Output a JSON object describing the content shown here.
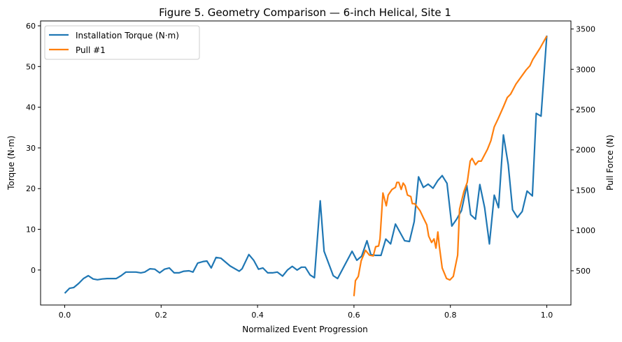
{
  "chart_data": {
    "type": "line",
    "title": "Figure 5. Geometry Comparison — 6-inch Helical, Site 1",
    "xlabel": "Normalized Event Progression",
    "ylabel_left": "Torque (N·m)",
    "ylabel_right": "Pull Force (N)",
    "xlim": [
      -0.05,
      1.05
    ],
    "ylim_left": [
      -8.6,
      61.2
    ],
    "ylim_right": [
      75,
      3600
    ],
    "xticks": [
      "0.0",
      "0.2",
      "0.4",
      "0.6",
      "0.8",
      "1.0"
    ],
    "yticks_left": [
      "0",
      "10",
      "20",
      "30",
      "40",
      "50",
      "60"
    ],
    "yticks_right": [
      "500",
      "1000",
      "1500",
      "2000",
      "2500",
      "3000",
      "3500"
    ],
    "grid": false,
    "legend_position": "upper-left",
    "series": [
      {
        "name": "Installation Torque (N·m)",
        "axis": "left",
        "color": "#1f77b4",
        "x": [
          0,
          0.01,
          0.019,
          0.029,
          0.039,
          0.049,
          0.059,
          0.068,
          0.078,
          0.088,
          0.107,
          0.117,
          0.127,
          0.148,
          0.158,
          0.166,
          0.177,
          0.187,
          0.197,
          0.207,
          0.217,
          0.227,
          0.237,
          0.247,
          0.258,
          0.266,
          0.276,
          0.288,
          0.295,
          0.304,
          0.314,
          0.324,
          0.343,
          0.362,
          0.368,
          0.382,
          0.392,
          0.402,
          0.411,
          0.421,
          0.431,
          0.441,
          0.452,
          0.462,
          0.472,
          0.482,
          0.491,
          0.499,
          0.509,
          0.518,
          0.53,
          0.538,
          0.557,
          0.566,
          0.596,
          0.606,
          0.616,
          0.627,
          0.635,
          0.645,
          0.656,
          0.666,
          0.676,
          0.686,
          0.705,
          0.715,
          0.725,
          0.734,
          0.744,
          0.754,
          0.764,
          0.774,
          0.783,
          0.793,
          0.803,
          0.813,
          0.823,
          0.834,
          0.842,
          0.852,
          0.861,
          0.871,
          0.881,
          0.891,
          0.9,
          0.91,
          0.92,
          0.929,
          0.939,
          0.949,
          0.959,
          0.97,
          0.978,
          0.988,
          1.0
        ],
        "y": [
          -5.7,
          -4.5,
          -4.3,
          -3.3,
          -2.1,
          -1.4,
          -2.2,
          -2.4,
          -2.2,
          -2.1,
          -2.1,
          -1.4,
          -0.5,
          -0.5,
          -0.7,
          -0.5,
          0.3,
          0.2,
          -0.7,
          0.2,
          0.5,
          -0.7,
          -0.7,
          -0.3,
          -0.2,
          -0.5,
          1.7,
          2.1,
          2.2,
          0.5,
          3.1,
          2.9,
          1.0,
          -0.3,
          0.3,
          3.8,
          2.4,
          0.2,
          0.5,
          -0.7,
          -0.7,
          -0.5,
          -1.5,
          0,
          0.9,
          0,
          0.7,
          0.7,
          -1.2,
          -1.9,
          17.0,
          4.6,
          -1.4,
          -2.1,
          4.6,
          2.4,
          3.4,
          7.2,
          3.8,
          3.6,
          3.6,
          7.6,
          6.4,
          11.3,
          7.2,
          7.0,
          11.9,
          22.9,
          20.3,
          21.1,
          20.1,
          22.0,
          23.2,
          21.3,
          10.8,
          12.5,
          14.6,
          20.8,
          13.6,
          12.5,
          21.0,
          15.3,
          6.4,
          18.4,
          15.3,
          33.2,
          25.9,
          14.8,
          12.9,
          14.4,
          19.4,
          18.2,
          38.5,
          37.8,
          57.6
        ]
      },
      {
        "name": "Pull #1",
        "axis": "right",
        "color": "#ff7f0e",
        "x": [
          0.6,
          0.603,
          0.609,
          0.615,
          0.624,
          0.632,
          0.64,
          0.645,
          0.651,
          0.654,
          0.66,
          0.667,
          0.671,
          0.679,
          0.686,
          0.689,
          0.693,
          0.698,
          0.702,
          0.706,
          0.711,
          0.718,
          0.721,
          0.726,
          0.737,
          0.744,
          0.751,
          0.755,
          0.761,
          0.766,
          0.77,
          0.774,
          0.777,
          0.783,
          0.792,
          0.799,
          0.806,
          0.812,
          0.815,
          0.819,
          0.828,
          0.835,
          0.841,
          0.845,
          0.852,
          0.858,
          0.864,
          0.877,
          0.884,
          0.891,
          0.899,
          0.91,
          0.918,
          0.925,
          0.936,
          0.957,
          0.965,
          0.971,
          0.986,
          1.0
        ],
        "y": [
          184,
          377,
          430,
          623,
          754,
          693,
          684,
          798,
          807,
          895,
          1465,
          1307,
          1439,
          1509,
          1535,
          1597,
          1597,
          1509,
          1588,
          1553,
          1439,
          1421,
          1333,
          1333,
          1246,
          1158,
          1070,
          930,
          851,
          895,
          781,
          982,
          807,
          535,
          404,
          386,
          430,
          605,
          693,
          1263,
          1482,
          1597,
          1860,
          1895,
          1816,
          1860,
          1860,
          2009,
          2114,
          2285,
          2386,
          2535,
          2649,
          2693,
          2816,
          2991,
          3044,
          3123,
          3263,
          3412
        ]
      }
    ]
  }
}
